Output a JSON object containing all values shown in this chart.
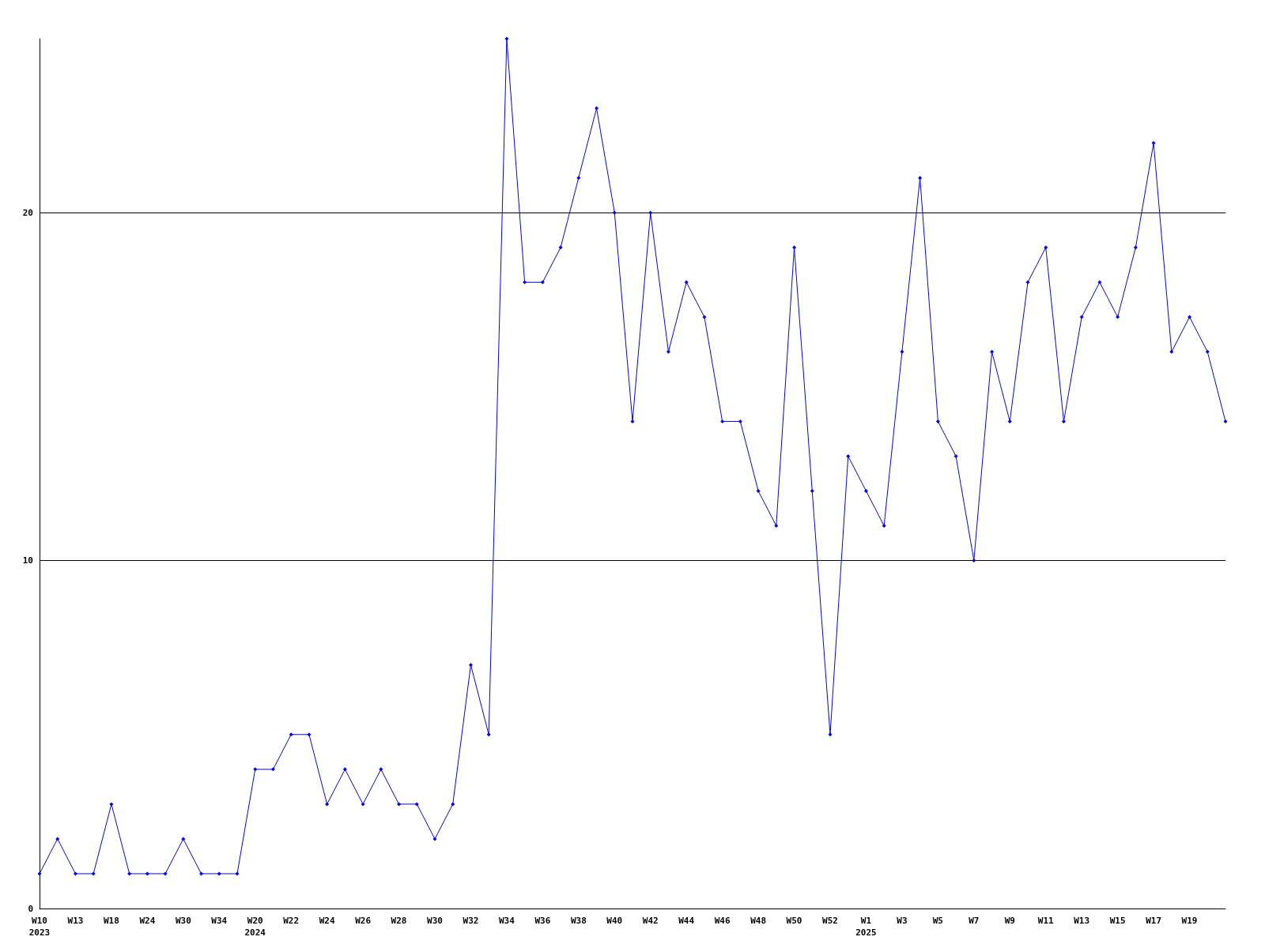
{
  "chart_data": {
    "type": "line",
    "categories": [
      "W10\n2023",
      null,
      "W13",
      null,
      "W18",
      null,
      "W24",
      null,
      "W30",
      null,
      "W34",
      null,
      "W20\n2024",
      null,
      "W22",
      null,
      "W24",
      null,
      "W26",
      null,
      "W28",
      null,
      "W30",
      null,
      "W32",
      null,
      "W34",
      null,
      "W36",
      null,
      "W38",
      null,
      "W40",
      null,
      "W42",
      null,
      "W44",
      null,
      "W46",
      null,
      "W48",
      null,
      "W50",
      null,
      "W52",
      null,
      "W1\n2025",
      null,
      "W3",
      null,
      "W5",
      null,
      "W7",
      null,
      "W9",
      null,
      "W11",
      null,
      "W13",
      null,
      "W15",
      null,
      "W17",
      null,
      "W19",
      null,
      null
    ],
    "series": [
      {
        "color": "#0000ff",
        "values": [
          1,
          2,
          1,
          1,
          3,
          1,
          1,
          1,
          2,
          1,
          1,
          1,
          4,
          4,
          5,
          5,
          3,
          4,
          3,
          4,
          3,
          3,
          2,
          3,
          7,
          5,
          25,
          18,
          18,
          19,
          21,
          23,
          20,
          14,
          20,
          16,
          18,
          17,
          14,
          14,
          12,
          11,
          19,
          12,
          5,
          13,
          12,
          11,
          16,
          21,
          14,
          13,
          10,
          16,
          14,
          18,
          19,
          14,
          17,
          18,
          17,
          19,
          22,
          16,
          17,
          16,
          14
        ]
      }
    ],
    "ylim": [
      0,
      25
    ],
    "yticks": [
      0,
      10,
      20
    ],
    "grid": "y",
    "marker": "diamond",
    "line_style": "solid"
  }
}
